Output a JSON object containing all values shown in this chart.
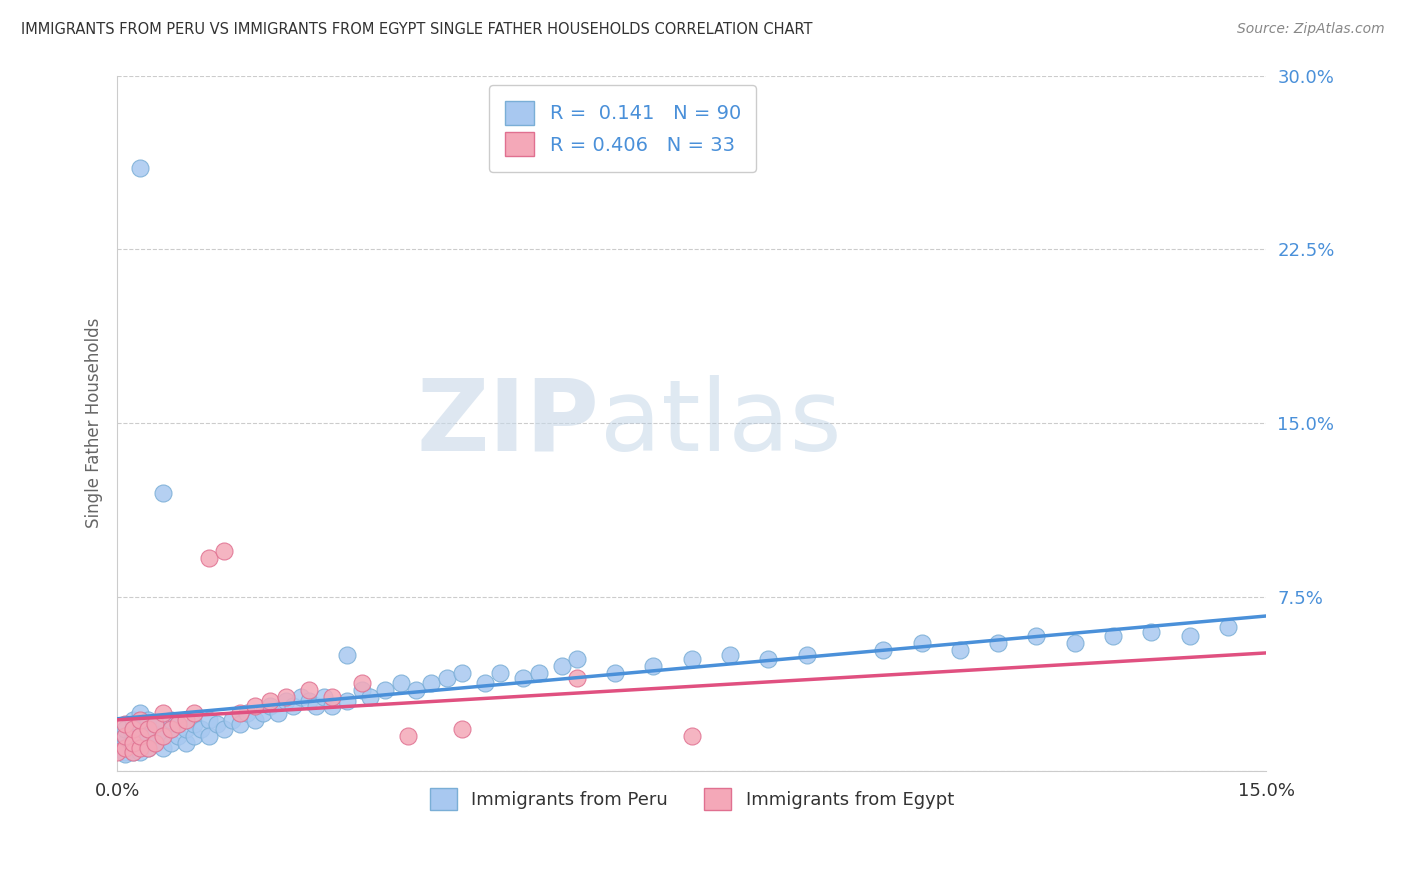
{
  "title": "IMMIGRANTS FROM PERU VS IMMIGRANTS FROM EGYPT SINGLE FATHER HOUSEHOLDS CORRELATION CHART",
  "source": "Source: ZipAtlas.com",
  "ylabel": "Single Father Households",
  "xlabel_peru": "Immigrants from Peru",
  "xlabel_egypt": "Immigrants from Egypt",
  "watermark_zip": "ZIP",
  "watermark_atlas": "atlas",
  "xlim": [
    0.0,
    0.15
  ],
  "ylim": [
    0.0,
    0.3
  ],
  "peru_color": "#a8c8f0",
  "egypt_color": "#f4a8b8",
  "peru_edge": "#7aaed6",
  "egypt_edge": "#e07090",
  "trend_peru_color": "#4a90d9",
  "trend_egypt_color": "#e05080",
  "R_peru": 0.141,
  "N_peru": 90,
  "R_egypt": 0.406,
  "N_egypt": 33,
  "background_color": "#ffffff",
  "grid_color": "#cccccc",
  "axis_label_color": "#666666",
  "tick_color_right": "#4a90d9",
  "title_color": "#333333",
  "legend_text_color": "#4a90d9",
  "peru_scatter_x": [
    0.0,
    0.001,
    0.001,
    0.001,
    0.001,
    0.001,
    0.001,
    0.002,
    0.002,
    0.002,
    0.002,
    0.002,
    0.002,
    0.002,
    0.003,
    0.003,
    0.003,
    0.003,
    0.003,
    0.003,
    0.004,
    0.004,
    0.004,
    0.004,
    0.005,
    0.005,
    0.005,
    0.006,
    0.006,
    0.006,
    0.007,
    0.007,
    0.007,
    0.008,
    0.008,
    0.009,
    0.009,
    0.01,
    0.01,
    0.011,
    0.012,
    0.012,
    0.013,
    0.014,
    0.015,
    0.016,
    0.017,
    0.018,
    0.019,
    0.02,
    0.021,
    0.022,
    0.023,
    0.024,
    0.025,
    0.026,
    0.027,
    0.028,
    0.03,
    0.032,
    0.033,
    0.035,
    0.037,
    0.039,
    0.041,
    0.043,
    0.045,
    0.048,
    0.05,
    0.053,
    0.055,
    0.058,
    0.06,
    0.065,
    0.07,
    0.075,
    0.08,
    0.085,
    0.09,
    0.1,
    0.105,
    0.11,
    0.115,
    0.12,
    0.125,
    0.13,
    0.135,
    0.14,
    0.145,
    0.03
  ],
  "peru_scatter_y": [
    0.01,
    0.008,
    0.012,
    0.015,
    0.01,
    0.007,
    0.018,
    0.01,
    0.012,
    0.008,
    0.015,
    0.018,
    0.022,
    0.013,
    0.008,
    0.012,
    0.016,
    0.02,
    0.025,
    0.26,
    0.01,
    0.015,
    0.018,
    0.022,
    0.012,
    0.016,
    0.02,
    0.01,
    0.015,
    0.12,
    0.012,
    0.018,
    0.022,
    0.015,
    0.02,
    0.012,
    0.018,
    0.015,
    0.02,
    0.018,
    0.022,
    0.015,
    0.02,
    0.018,
    0.022,
    0.02,
    0.025,
    0.022,
    0.025,
    0.028,
    0.025,
    0.03,
    0.028,
    0.032,
    0.03,
    0.028,
    0.032,
    0.028,
    0.03,
    0.035,
    0.032,
    0.035,
    0.038,
    0.035,
    0.038,
    0.04,
    0.042,
    0.038,
    0.042,
    0.04,
    0.042,
    0.045,
    0.048,
    0.042,
    0.045,
    0.048,
    0.05,
    0.048,
    0.05,
    0.052,
    0.055,
    0.052,
    0.055,
    0.058,
    0.055,
    0.058,
    0.06,
    0.058,
    0.062,
    0.05
  ],
  "egypt_scatter_x": [
    0.0,
    0.001,
    0.001,
    0.001,
    0.002,
    0.002,
    0.002,
    0.003,
    0.003,
    0.003,
    0.004,
    0.004,
    0.005,
    0.005,
    0.006,
    0.006,
    0.007,
    0.008,
    0.009,
    0.01,
    0.012,
    0.014,
    0.016,
    0.018,
    0.02,
    0.022,
    0.025,
    0.028,
    0.032,
    0.038,
    0.045,
    0.06,
    0.075
  ],
  "egypt_scatter_y": [
    0.008,
    0.01,
    0.015,
    0.02,
    0.008,
    0.012,
    0.018,
    0.01,
    0.015,
    0.022,
    0.01,
    0.018,
    0.012,
    0.02,
    0.015,
    0.025,
    0.018,
    0.02,
    0.022,
    0.025,
    0.092,
    0.095,
    0.025,
    0.028,
    0.03,
    0.032,
    0.035,
    0.032,
    0.038,
    0.015,
    0.018,
    0.04,
    0.015
  ]
}
